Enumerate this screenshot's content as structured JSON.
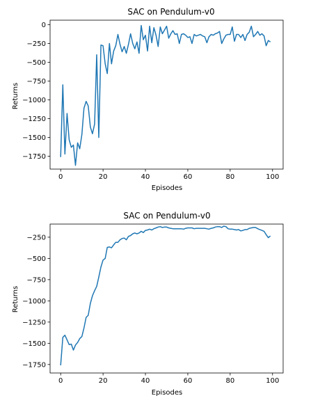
{
  "chart_data": [
    {
      "type": "line",
      "title": "SAC on Pendulum-v0",
      "xlabel": "Episodes",
      "ylabel": "Returns",
      "xlim": [
        -5,
        105
      ],
      "ylim": [
        -1920,
        60
      ],
      "xticks": [
        0,
        20,
        40,
        60,
        80,
        100
      ],
      "yticks": [
        0,
        -250,
        -500,
        -750,
        -1000,
        -1250,
        -1500,
        -1750
      ],
      "grid": false,
      "series": [
        {
          "x": [
            0,
            1,
            2,
            3,
            4,
            5,
            6,
            7,
            8,
            9,
            10,
            11,
            12,
            13,
            14,
            15,
            16,
            17,
            18,
            19,
            20,
            21,
            22,
            23,
            24,
            25,
            26,
            27,
            28,
            29,
            30,
            31,
            32,
            33,
            34,
            35,
            36,
            37,
            38,
            39,
            40,
            41,
            42,
            43,
            44,
            45,
            46,
            47,
            48,
            49,
            50,
            51,
            52,
            53,
            54,
            55,
            56,
            57,
            58,
            59,
            60,
            61,
            62,
            63,
            64,
            65,
            66,
            67,
            68,
            69,
            70,
            71,
            72,
            73,
            74,
            75,
            76,
            77,
            78,
            79,
            80,
            81,
            82,
            83,
            84,
            85,
            86,
            87,
            88,
            89,
            90,
            91,
            92,
            93,
            94,
            95,
            96,
            97,
            98,
            99
          ],
          "values": [
            -1760,
            -800,
            -1720,
            -1180,
            -1530,
            -1630,
            -1600,
            -1870,
            -1570,
            -1650,
            -1460,
            -1110,
            -1020,
            -1080,
            -1360,
            -1450,
            -1320,
            -400,
            -1500,
            -270,
            -280,
            -520,
            -650,
            -250,
            -520,
            -350,
            -280,
            -130,
            -260,
            -360,
            -290,
            -380,
            -260,
            -120,
            -250,
            -320,
            -230,
            -380,
            -10,
            -200,
            -140,
            -350,
            -20,
            -240,
            -40,
            -140,
            -290,
            -30,
            -120,
            -70,
            -20,
            -180,
            -120,
            -80,
            -130,
            -120,
            -250,
            -130,
            -120,
            -140,
            -170,
            -160,
            -250,
            -130,
            -150,
            -140,
            -130,
            -150,
            -160,
            -240,
            -160,
            -130,
            -140,
            -120,
            -110,
            -90,
            -250,
            -190,
            -140,
            -130,
            -130,
            -30,
            -220,
            -130,
            -130,
            -170,
            -130,
            -210,
            -130,
            -100,
            -20,
            -160,
            -130,
            -90,
            -140,
            -120,
            -150,
            -280,
            -210,
            -230
          ]
        }
      ]
    },
    {
      "type": "line",
      "title": "SAC on Pendulum-v0",
      "xlabel": "Episodes",
      "ylabel": "Returns",
      "xlim": [
        -5,
        105
      ],
      "ylim": [
        -1850,
        -95
      ],
      "xticks": [
        0,
        20,
        40,
        60,
        80,
        100
      ],
      "yticks": [
        -250,
        -500,
        -750,
        -1000,
        -1250,
        -1500,
        -1750
      ],
      "grid": false,
      "series": [
        {
          "x": [
            0,
            1,
            2,
            3,
            4,
            5,
            6,
            7,
            8,
            9,
            10,
            11,
            12,
            13,
            14,
            15,
            16,
            17,
            18,
            19,
            20,
            21,
            22,
            23,
            24,
            25,
            26,
            27,
            28,
            29,
            30,
            31,
            32,
            33,
            34,
            35,
            36,
            37,
            38,
            39,
            40,
            41,
            42,
            43,
            44,
            45,
            46,
            47,
            48,
            49,
            50,
            51,
            52,
            53,
            54,
            55,
            56,
            57,
            58,
            59,
            60,
            61,
            62,
            63,
            64,
            65,
            66,
            67,
            68,
            69,
            70,
            71,
            72,
            73,
            74,
            75,
            76,
            77,
            78,
            79,
            80,
            81,
            82,
            83,
            84,
            85,
            86,
            87,
            88,
            89,
            90,
            91,
            92,
            93,
            94,
            95,
            96,
            97,
            98,
            99
          ],
          "values": [
            -1760,
            -1430,
            -1405,
            -1460,
            -1515,
            -1510,
            -1580,
            -1520,
            -1490,
            -1445,
            -1420,
            -1320,
            -1195,
            -1170,
            -1030,
            -940,
            -880,
            -830,
            -720,
            -600,
            -520,
            -500,
            -370,
            -365,
            -375,
            -340,
            -310,
            -310,
            -280,
            -265,
            -260,
            -280,
            -240,
            -230,
            -210,
            -200,
            -210,
            -200,
            -180,
            -195,
            -170,
            -165,
            -155,
            -165,
            -150,
            -140,
            -130,
            -125,
            -135,
            -130,
            -130,
            -140,
            -145,
            -150,
            -150,
            -150,
            -150,
            -150,
            -155,
            -145,
            -140,
            -140,
            -140,
            -150,
            -145,
            -145,
            -145,
            -145,
            -145,
            -150,
            -155,
            -145,
            -140,
            -130,
            -125,
            -125,
            -135,
            -120,
            -125,
            -150,
            -155,
            -155,
            -160,
            -165,
            -160,
            -175,
            -170,
            -160,
            -160,
            -145,
            -140,
            -135,
            -135,
            -150,
            -160,
            -170,
            -180,
            -220,
            -255,
            -235
          ]
        }
      ]
    }
  ]
}
